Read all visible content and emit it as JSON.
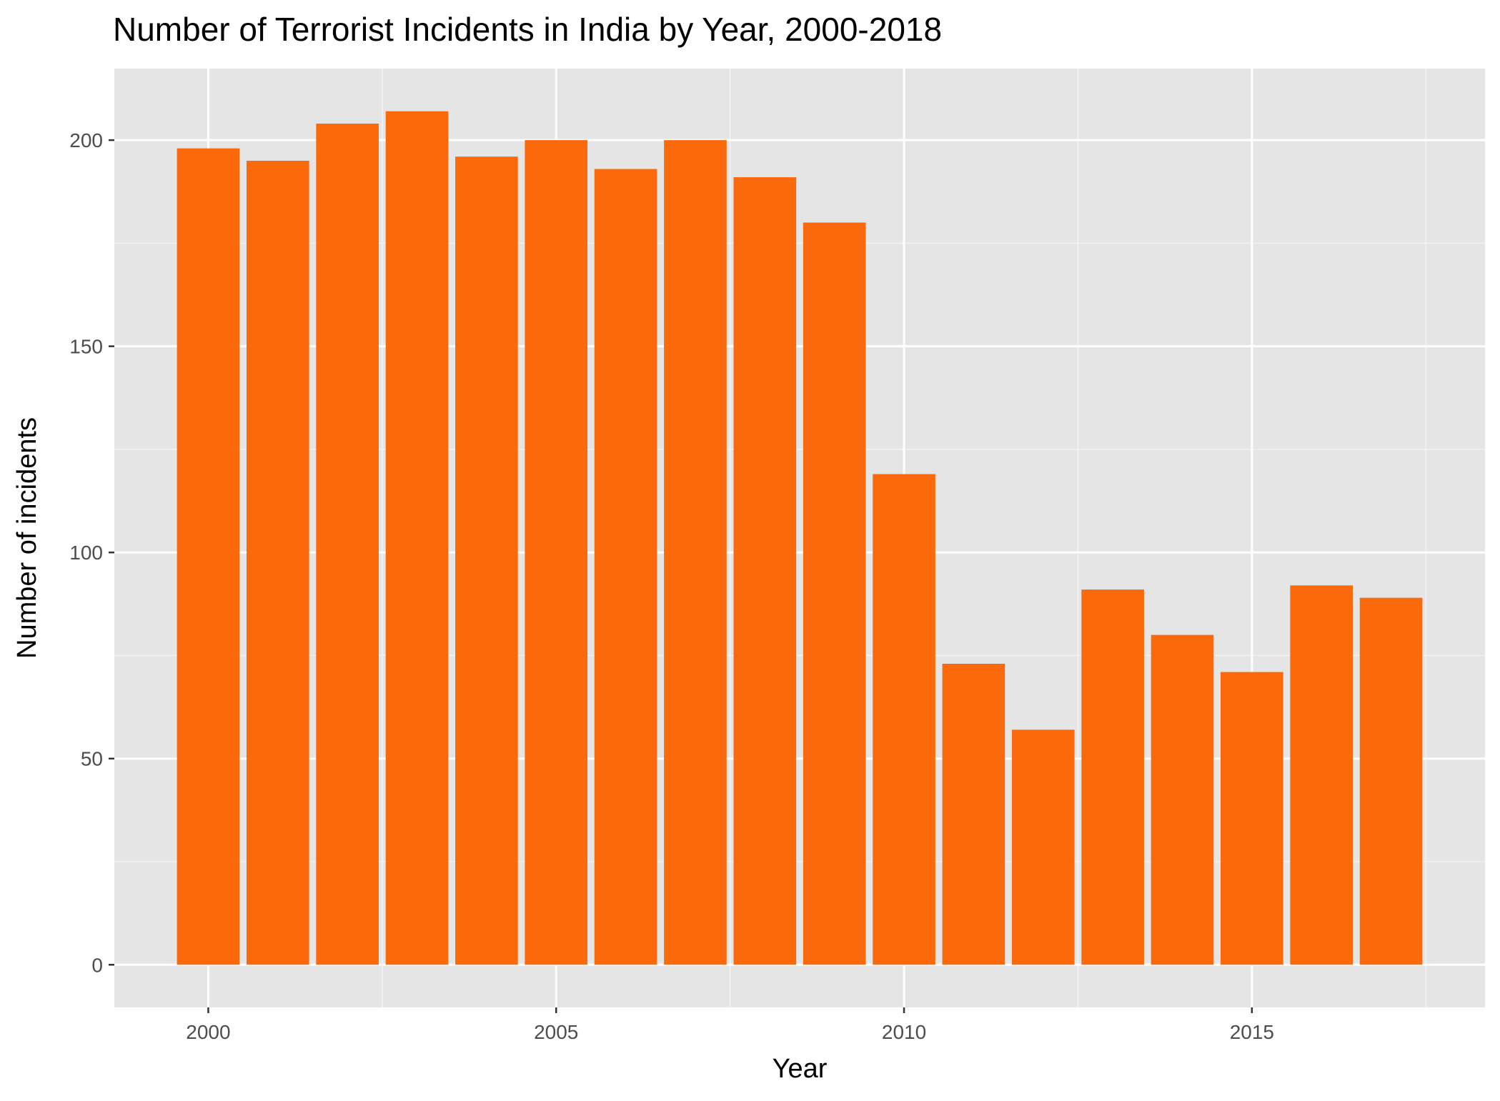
{
  "title": "Number of Terrorist Incidents in India by Year, 2000-2018",
  "colors": {
    "bar": "#FA690C",
    "panel": "#E5E5E5",
    "grid_major": "#FFFFFF",
    "grid_minor": "#F2F2F2",
    "tick_text": "#4D4D4D",
    "tick_mark": "#333333"
  },
  "chart_data": {
    "type": "bar",
    "title": "Number of Terrorist Incidents in India by Year, 2000-2018",
    "xlabel": "Year",
    "ylabel": "Number of incidents",
    "x": [
      2000,
      2001,
      2002,
      2003,
      2004,
      2005,
      2006,
      2007,
      2008,
      2009,
      2010,
      2011,
      2012,
      2013,
      2014,
      2015,
      2016,
      2017
    ],
    "values": [
      198,
      195,
      204,
      207,
      196,
      200,
      193,
      200,
      191,
      180,
      119,
      73,
      57,
      91,
      80,
      71,
      92,
      89
    ],
    "xlim": [
      1998.65,
      2018.35
    ],
    "ylim": [
      -10.35,
      217.35
    ],
    "x_ticks": [
      2000,
      2005,
      2010,
      2015
    ],
    "x_tick_labels": [
      "2000",
      "2005",
      "2010",
      "2015"
    ],
    "y_ticks": [
      0,
      50,
      100,
      150,
      200
    ],
    "y_tick_labels": [
      "0",
      "50",
      "100",
      "150",
      "200"
    ],
    "grid": true,
    "legend": "none"
  }
}
